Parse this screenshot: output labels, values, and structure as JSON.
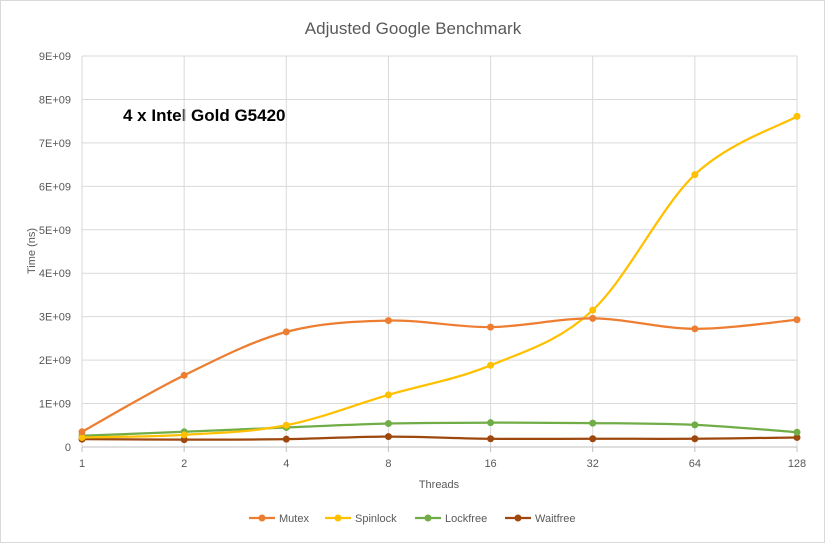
{
  "chart_data": {
    "type": "line",
    "title": "Adjusted Google Benchmark",
    "annotation": "4 x Intel Gold G5420",
    "xlabel": "Threads",
    "ylabel": "Time (ns)",
    "x": [
      "1",
      "2",
      "4",
      "8",
      "16",
      "32",
      "64",
      "128"
    ],
    "y_ticks": [
      "0",
      "1E+09",
      "2E+09",
      "3E+09",
      "4E+09",
      "5E+09",
      "6E+09",
      "7E+09",
      "8E+09",
      "9E+09"
    ],
    "ylim": [
      0,
      9000000000
    ],
    "grid": true,
    "legend_position": "bottom",
    "series": [
      {
        "name": "Mutex",
        "color": "#ED7D31",
        "values": [
          350000000,
          1650000000,
          2650000000,
          2910000000,
          2760000000,
          2960000000,
          2720000000,
          2930000000
        ]
      },
      {
        "name": "Spinlock",
        "color": "#FFC000",
        "values": [
          220000000,
          280000000,
          500000000,
          1200000000,
          1880000000,
          3150000000,
          6270000000,
          7610000000
        ]
      },
      {
        "name": "Lockfree",
        "color": "#70AD47",
        "values": [
          260000000,
          350000000,
          450000000,
          540000000,
          560000000,
          550000000,
          510000000,
          340000000
        ]
      },
      {
        "name": "Waitfree",
        "color": "#9E480E",
        "values": [
          180000000,
          170000000,
          180000000,
          240000000,
          190000000,
          190000000,
          190000000,
          220000000
        ]
      }
    ]
  }
}
